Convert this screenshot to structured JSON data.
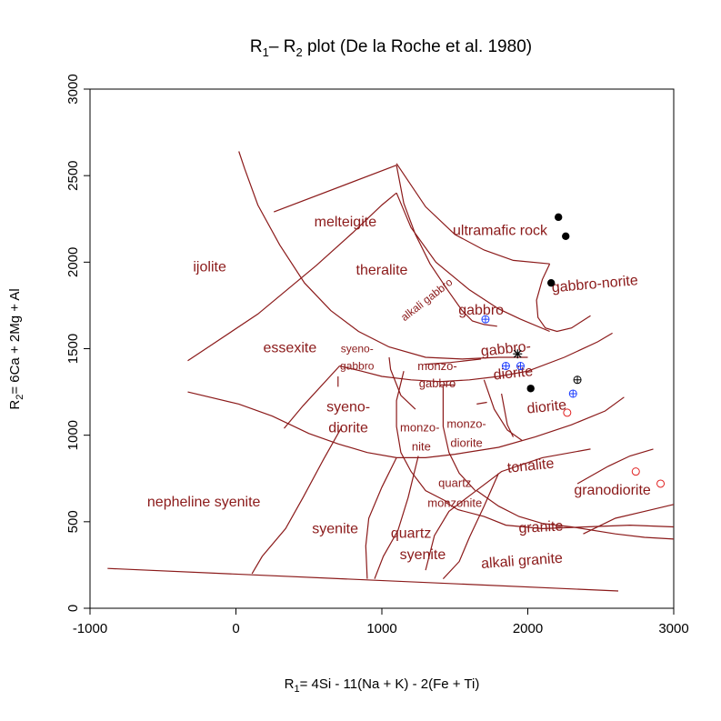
{
  "chart_data": {
    "type": "scatter",
    "title": "R₁– R₂ plot (De la Roche et al. 1980)",
    "title_parts": {
      "a": "R",
      "a_sub": "1",
      "b": "– R",
      "b_sub": "2",
      "rest": " plot (De la Roche et al. 1980)"
    },
    "xlabel": "R₁= 4Si - 11(Na + K) - 2(Fe + Ti)",
    "xlabel_parts": {
      "a": "R",
      "a_sub": "1",
      "rest": "= 4Si - 11(Na + K) - 2(Fe + Ti)"
    },
    "ylabel": "R₂= 6Ca + 2Mg + Al",
    "ylabel_parts": {
      "a": "R",
      "a_sub": "2",
      "rest": "= 6Ca + 2Mg + Al"
    },
    "xlim": [
      -1000,
      3000
    ],
    "ylim": [
      0,
      3000
    ],
    "xticks": [
      -1000,
      0,
      1000,
      2000,
      3000
    ],
    "yticks": [
      0,
      500,
      1000,
      1500,
      2000,
      2500,
      3000
    ],
    "grid": false,
    "colors": {
      "field": "#8b1a1a",
      "black": "#000000",
      "blue": "#1f3fff",
      "red": "#e02020"
    },
    "fields": [
      {
        "label": "melteigite",
        "x": 750,
        "y": 2230,
        "size": 16,
        "rot": 0
      },
      {
        "label": "ultramafic rock",
        "x": 1810,
        "y": 2180,
        "size": 16,
        "rot": 0
      },
      {
        "label": "ijolite",
        "x": -180,
        "y": 1970,
        "size": 16,
        "rot": 0
      },
      {
        "label": "theralite",
        "x": 1000,
        "y": 1950,
        "size": 16,
        "rot": 0
      },
      {
        "label": "alkali gabbro",
        "x": 1310,
        "y": 1780,
        "size": 12,
        "rot": -38
      },
      {
        "label": "gabbro",
        "x": 1680,
        "y": 1720,
        "size": 16,
        "rot": 0
      },
      {
        "label": "gabbro-norite",
        "x": 2460,
        "y": 1870,
        "size": 16,
        "rot": -5
      },
      {
        "label": "essexite",
        "x": 370,
        "y": 1500,
        "size": 16,
        "rot": 0
      },
      {
        "label": "syeno-",
        "x": 830,
        "y": 1495,
        "size": 12,
        "rot": 0
      },
      {
        "label": "gabbro",
        "x": 830,
        "y": 1395,
        "size": 12,
        "rot": 0
      },
      {
        "label": "monzo-",
        "x": 1380,
        "y": 1395,
        "size": 13,
        "rot": 0
      },
      {
        "label": "gabbro",
        "x": 1380,
        "y": 1295,
        "size": 13,
        "rot": 0
      },
      {
        "label": "gabbro-",
        "x": 1850,
        "y": 1495,
        "size": 16,
        "rot": -6
      },
      {
        "label": "diorite",
        "x": 1900,
        "y": 1355,
        "size": 16,
        "rot": -6
      },
      {
        "label": "diorite",
        "x": 2130,
        "y": 1160,
        "size": 16,
        "rot": -6
      },
      {
        "label": "syeno-",
        "x": 770,
        "y": 1160,
        "size": 16,
        "rot": 0
      },
      {
        "label": "diorite",
        "x": 770,
        "y": 1040,
        "size": 16,
        "rot": 0
      },
      {
        "label": "monzo-",
        "x": 1260,
        "y": 1040,
        "size": 13,
        "rot": 0
      },
      {
        "label": "nite",
        "x": 1270,
        "y": 930,
        "size": 13,
        "rot": 0
      },
      {
        "label": "monzo-",
        "x": 1580,
        "y": 1060,
        "size": 13,
        "rot": 0
      },
      {
        "label": "diorite",
        "x": 1580,
        "y": 950,
        "size": 13,
        "rot": 0
      },
      {
        "label": "tonalite",
        "x": 2020,
        "y": 820,
        "size": 16,
        "rot": -6
      },
      {
        "label": "quartz",
        "x": 1500,
        "y": 720,
        "size": 13,
        "rot": 0
      },
      {
        "label": "monzonite",
        "x": 1500,
        "y": 605,
        "size": 13,
        "rot": 0
      },
      {
        "label": "granodiorite",
        "x": 2580,
        "y": 680,
        "size": 16,
        "rot": 0
      },
      {
        "label": "nepheline syenite",
        "x": -220,
        "y": 610,
        "size": 16,
        "rot": 0
      },
      {
        "label": "granite",
        "x": 2090,
        "y": 465,
        "size": 16,
        "rot": -3
      },
      {
        "label": "syenite",
        "x": 680,
        "y": 455,
        "size": 16,
        "rot": 0
      },
      {
        "label": "quartz",
        "x": 1200,
        "y": 430,
        "size": 16,
        "rot": 0
      },
      {
        "label": "syenite",
        "x": 1280,
        "y": 305,
        "size": 16,
        "rot": 0
      },
      {
        "label": "alkali granite",
        "x": 1960,
        "y": 270,
        "size": 16,
        "rot": -4
      }
    ],
    "boundaries": [
      [
        [
          20,
          2640
        ],
        [
          60,
          2540
        ],
        [
          150,
          2330
        ],
        [
          300,
          2100
        ],
        [
          470,
          1880
        ],
        [
          650,
          1720
        ],
        [
          840,
          1600
        ],
        [
          1050,
          1510
        ],
        [
          1300,
          1450
        ],
        [
          1550,
          1440
        ],
        [
          1800,
          1450
        ],
        [
          2000,
          1450
        ]
      ],
      [
        [
          1100,
          2570
        ],
        [
          1300,
          2320
        ],
        [
          1500,
          2160
        ],
        [
          1700,
          2070
        ],
        [
          1900,
          2010
        ],
        [
          2150,
          1990
        ]
      ],
      [
        [
          2150,
          1990
        ],
        [
          2100,
          1900
        ],
        [
          2060,
          1780
        ],
        [
          2070,
          1680
        ],
        [
          2120,
          1620
        ],
        [
          2200,
          1600
        ],
        [
          2300,
          1620
        ],
        [
          2430,
          1690
        ]
      ],
      [
        [
          -330,
          1430
        ],
        [
          150,
          1700
        ],
        [
          550,
          1980
        ],
        [
          800,
          2170
        ],
        [
          1000,
          2330
        ],
        [
          1100,
          2400
        ]
      ],
      [
        [
          1100,
          2400
        ],
        [
          1200,
          2200
        ],
        [
          1370,
          2000
        ],
        [
          1600,
          1840
        ],
        [
          1800,
          1730
        ],
        [
          1950,
          1670
        ],
        [
          2150,
          1600
        ]
      ],
      [
        [
          260,
          2290
        ],
        [
          1100,
          2560
        ]
      ],
      [
        [
          1100,
          2560
        ],
        [
          1150,
          2340
        ],
        [
          1230,
          2160
        ],
        [
          1330,
          1990
        ],
        [
          1450,
          1840
        ],
        [
          1550,
          1720
        ],
        [
          1620,
          1660
        ],
        [
          1700,
          1640
        ],
        [
          1790,
          1630
        ]
      ],
      [
        [
          700,
          1340
        ],
        [
          700,
          1280
        ]
      ],
      [
        [
          1050,
          1450
        ],
        [
          1060,
          1380
        ],
        [
          1130,
          1230
        ],
        [
          1230,
          1150
        ]
      ],
      [
        [
          1650,
          1180
        ],
        [
          1720,
          1190
        ]
      ],
      [
        [
          1300,
          1410
        ],
        [
          1470,
          1420
        ],
        [
          1680,
          1440
        ]
      ],
      [
        [
          1400,
          1290
        ],
        [
          1500,
          1290
        ]
      ],
      [
        [
          -330,
          1250
        ],
        [
          20,
          1180
        ],
        [
          250,
          1110
        ],
        [
          500,
          1010
        ],
        [
          700,
          950
        ],
        [
          900,
          900
        ],
        [
          1100,
          870
        ],
        [
          1300,
          870
        ],
        [
          1500,
          890
        ],
        [
          1800,
          930
        ],
        [
          2050,
          990
        ],
        [
          2300,
          1060
        ],
        [
          2530,
          1140
        ],
        [
          2660,
          1220
        ]
      ],
      [
        [
          710,
          1400
        ],
        [
          860,
          1370
        ],
        [
          1000,
          1340
        ],
        [
          1200,
          1320
        ],
        [
          1400,
          1310
        ],
        [
          1600,
          1320
        ],
        [
          1800,
          1340
        ],
        [
          2000,
          1370
        ],
        [
          2250,
          1450
        ],
        [
          2480,
          1540
        ],
        [
          2580,
          1590
        ]
      ],
      [
        [
          330,
          1040
        ],
        [
          460,
          1170
        ],
        [
          710,
          1400
        ]
      ],
      [
        [
          1150,
          1370
        ],
        [
          1100,
          1200
        ],
        [
          1100,
          1050
        ],
        [
          1130,
          900
        ],
        [
          1200,
          790
        ],
        [
          1300,
          680
        ],
        [
          1460,
          610
        ]
      ],
      [
        [
          1420,
          1280
        ],
        [
          1420,
          1050
        ],
        [
          1460,
          900
        ],
        [
          1530,
          780
        ],
        [
          1640,
          680
        ]
      ],
      [
        [
          1700,
          1320
        ],
        [
          1770,
          1150
        ],
        [
          1860,
          1030
        ],
        [
          1960,
          970
        ]
      ],
      [
        [
          1440,
          610
        ],
        [
          1520,
          570
        ],
        [
          1700,
          530
        ],
        [
          1850,
          480
        ],
        [
          2100,
          460
        ],
        [
          2400,
          470
        ],
        [
          2700,
          480
        ],
        [
          3000,
          470
        ]
      ],
      [
        [
          1820,
          1240
        ],
        [
          1860,
          1060
        ],
        [
          1900,
          990
        ]
      ],
      [
        [
          1650,
          680
        ],
        [
          1800,
          590
        ],
        [
          1940,
          530
        ],
        [
          2100,
          490
        ],
        [
          2300,
          470
        ],
        [
          2600,
          430
        ],
        [
          2800,
          410
        ],
        [
          3000,
          400
        ]
      ],
      [
        [
          2340,
          720
        ],
        [
          2550,
          820
        ],
        [
          2700,
          880
        ],
        [
          2860,
          920
        ]
      ],
      [
        [
          2380,
          430
        ],
        [
          2600,
          520
        ],
        [
          2800,
          560
        ],
        [
          3000,
          600
        ]
      ],
      [
        [
          1300,
          220
        ],
        [
          1360,
          420
        ],
        [
          1460,
          560
        ],
        [
          1600,
          650
        ],
        [
          1820,
          790
        ],
        [
          2100,
          870
        ],
        [
          2430,
          920
        ]
      ],
      [
        [
          720,
          1040
        ],
        [
          600,
          860
        ],
        [
          460,
          640
        ],
        [
          340,
          460
        ],
        [
          180,
          300
        ],
        [
          110,
          200
        ]
      ],
      [
        [
          1100,
          870
        ],
        [
          1000,
          700
        ],
        [
          910,
          520
        ],
        [
          890,
          360
        ],
        [
          900,
          170
        ]
      ],
      [
        [
          1250,
          880
        ],
        [
          1180,
          640
        ],
        [
          1110,
          450
        ],
        [
          1010,
          300
        ],
        [
          950,
          170
        ]
      ],
      [
        [
          1800,
          780
        ],
        [
          1700,
          590
        ],
        [
          1600,
          410
        ],
        [
          1530,
          270
        ],
        [
          1420,
          170
        ]
      ],
      [
        [
          -880,
          230
        ],
        [
          2620,
          100
        ]
      ]
    ],
    "points": [
      {
        "x": 2210,
        "y": 2260,
        "marker": "dot",
        "color": "black"
      },
      {
        "x": 2260,
        "y": 2150,
        "marker": "dot",
        "color": "black"
      },
      {
        "x": 2160,
        "y": 1880,
        "marker": "dot",
        "color": "black"
      },
      {
        "x": 2020,
        "y": 1270,
        "marker": "dot",
        "color": "black"
      },
      {
        "x": 1930,
        "y": 1470,
        "marker": "star",
        "color": "black"
      },
      {
        "x": 2340,
        "y": 1320,
        "marker": "crosscircle",
        "color": "black"
      },
      {
        "x": 1710,
        "y": 1670,
        "marker": "crosscircle",
        "color": "blue"
      },
      {
        "x": 1850,
        "y": 1400,
        "marker": "crosscircle",
        "color": "blue"
      },
      {
        "x": 1950,
        "y": 1400,
        "marker": "crosscircle",
        "color": "blue"
      },
      {
        "x": 2310,
        "y": 1240,
        "marker": "crosscircle",
        "color": "blue"
      },
      {
        "x": 2270,
        "y": 1130,
        "marker": "circle",
        "color": "red"
      },
      {
        "x": 2740,
        "y": 790,
        "marker": "circle",
        "color": "red"
      },
      {
        "x": 2910,
        "y": 720,
        "marker": "circle",
        "color": "red"
      }
    ]
  }
}
